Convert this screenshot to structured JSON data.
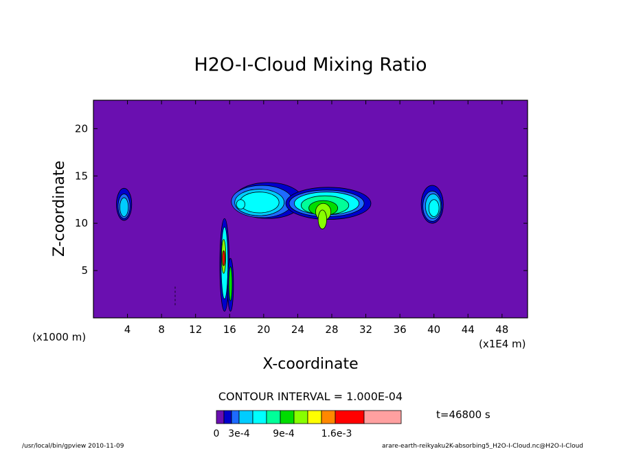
{
  "chart_data": {
    "type": "heatmap",
    "title": "H2O-I-Cloud Mixing Ratio",
    "xlabel": "X-coordinate",
    "ylabel": "Z-coordinate",
    "x_unit": "(x1E4 m)",
    "y_unit": "(x1000 m)",
    "xlim": [
      0,
      51
    ],
    "ylim": [
      0,
      23
    ],
    "x_ticks": [
      4,
      8,
      12,
      16,
      20,
      24,
      28,
      32,
      36,
      40,
      44,
      48
    ],
    "y_ticks": [
      5,
      10,
      15,
      20
    ],
    "contour_interval_text": "CONTOUR INTERVAL = 1.000E-04",
    "time_label": "t=46800 s",
    "colorbar": {
      "labels": [
        "0",
        "3e-4",
        "9e-4",
        "1.6e-3"
      ],
      "colors": [
        "#6a0fb0",
        "#0000cc",
        "#1e6bff",
        "#00ccff",
        "#00ffff",
        "#00ff99",
        "#00dd00",
        "#88ff00",
        "#ffff00",
        "#ff8800",
        "#ff0000",
        "#ffa0a0"
      ]
    },
    "features": [
      {
        "name": "left-edge-cloud",
        "x": 3.6,
        "z": 12.0,
        "peak_level": 3
      },
      {
        "name": "convective-column",
        "x": 15.6,
        "z": 5.5,
        "peak_level": 10
      },
      {
        "name": "anvil-west",
        "x": 19.5,
        "z": 12.2,
        "peak_level": 4
      },
      {
        "name": "anvil-east",
        "x": 27.5,
        "z": 12.0,
        "peak_level": 7
      },
      {
        "name": "right-cloud",
        "x": 40.0,
        "z": 12.0,
        "peak_level": 4
      }
    ]
  },
  "footer": {
    "left": "/usr/local/bin/gpview  2010-11-09",
    "right": "arare-earth-reikyaku2K-absorbing5_H2O-I-Cloud.nc@H2O-I-Cloud"
  }
}
